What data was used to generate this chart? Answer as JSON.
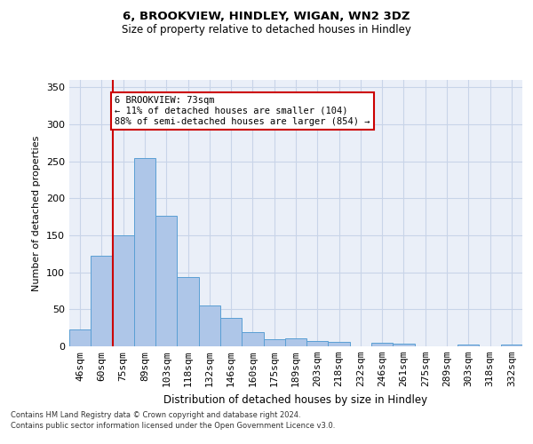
{
  "title1": "6, BROOKVIEW, HINDLEY, WIGAN, WN2 3DZ",
  "title2": "Size of property relative to detached houses in Hindley",
  "xlabel": "Distribution of detached houses by size in Hindley",
  "ylabel": "Number of detached properties",
  "categories": [
    "46sqm",
    "60sqm",
    "75sqm",
    "89sqm",
    "103sqm",
    "118sqm",
    "132sqm",
    "146sqm",
    "160sqm",
    "175sqm",
    "189sqm",
    "203sqm",
    "218sqm",
    "232sqm",
    "246sqm",
    "261sqm",
    "275sqm",
    "289sqm",
    "303sqm",
    "318sqm",
    "332sqm"
  ],
  "values": [
    23,
    122,
    150,
    255,
    177,
    94,
    55,
    38,
    19,
    10,
    11,
    7,
    6,
    0,
    5,
    4,
    0,
    0,
    2,
    0,
    2
  ],
  "bar_color": "#aec6e8",
  "bar_edge_color": "#5a9fd4",
  "grid_color": "#c8d4e8",
  "background_color": "#eaeff8",
  "annotation_text": "6 BROOKVIEW: 73sqm\n← 11% of detached houses are smaller (104)\n88% of semi-detached houses are larger (854) →",
  "annotation_box_color": "#ffffff",
  "annotation_box_edge": "#cc0000",
  "red_line_color": "#cc0000",
  "ylim": [
    0,
    360
  ],
  "yticks": [
    0,
    50,
    100,
    150,
    200,
    250,
    300,
    350
  ],
  "footer1": "Contains HM Land Registry data © Crown copyright and database right 2024.",
  "footer2": "Contains public sector information licensed under the Open Government Licence v3.0."
}
